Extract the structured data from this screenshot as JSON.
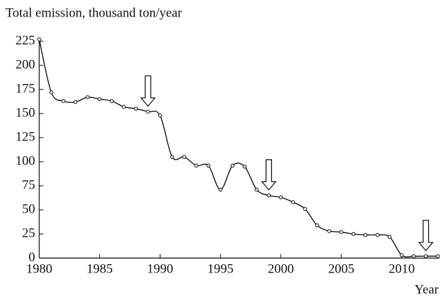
{
  "chart_data": {
    "type": "line",
    "y_label": "Total emission, thousand ton/year",
    "x_label": "Year",
    "x": [
      1980,
      1981,
      1982,
      1983,
      1984,
      1985,
      1986,
      1987,
      1988,
      1989,
      1990,
      1991,
      1992,
      1993,
      1994,
      1995,
      1996,
      1997,
      1998,
      1999,
      2000,
      2001,
      2002,
      2003,
      2004,
      2005,
      2006,
      2007,
      2008,
      2009,
      2010,
      2011,
      2012,
      2013
    ],
    "series": [
      {
        "name": "Total emission",
        "color": "#000000",
        "values": [
          227,
          172,
          163,
          162,
          167,
          165,
          163,
          157,
          155,
          152,
          148,
          105,
          105,
          96,
          96,
          71,
          96,
          95,
          71,
          65,
          63,
          58,
          51,
          34,
          28,
          27,
          25,
          24,
          24,
          22,
          3,
          2,
          2,
          2
        ]
      }
    ],
    "arrow_years": [
      1989,
      1999,
      2012
    ],
    "xlim": [
      1980,
      2013
    ],
    "ylim": [
      0,
      225
    ],
    "xticks": [
      1980,
      1985,
      1990,
      1995,
      2000,
      2005,
      2010
    ],
    "yticks": [
      0,
      25,
      50,
      75,
      100,
      125,
      150,
      175,
      200,
      225
    ]
  }
}
